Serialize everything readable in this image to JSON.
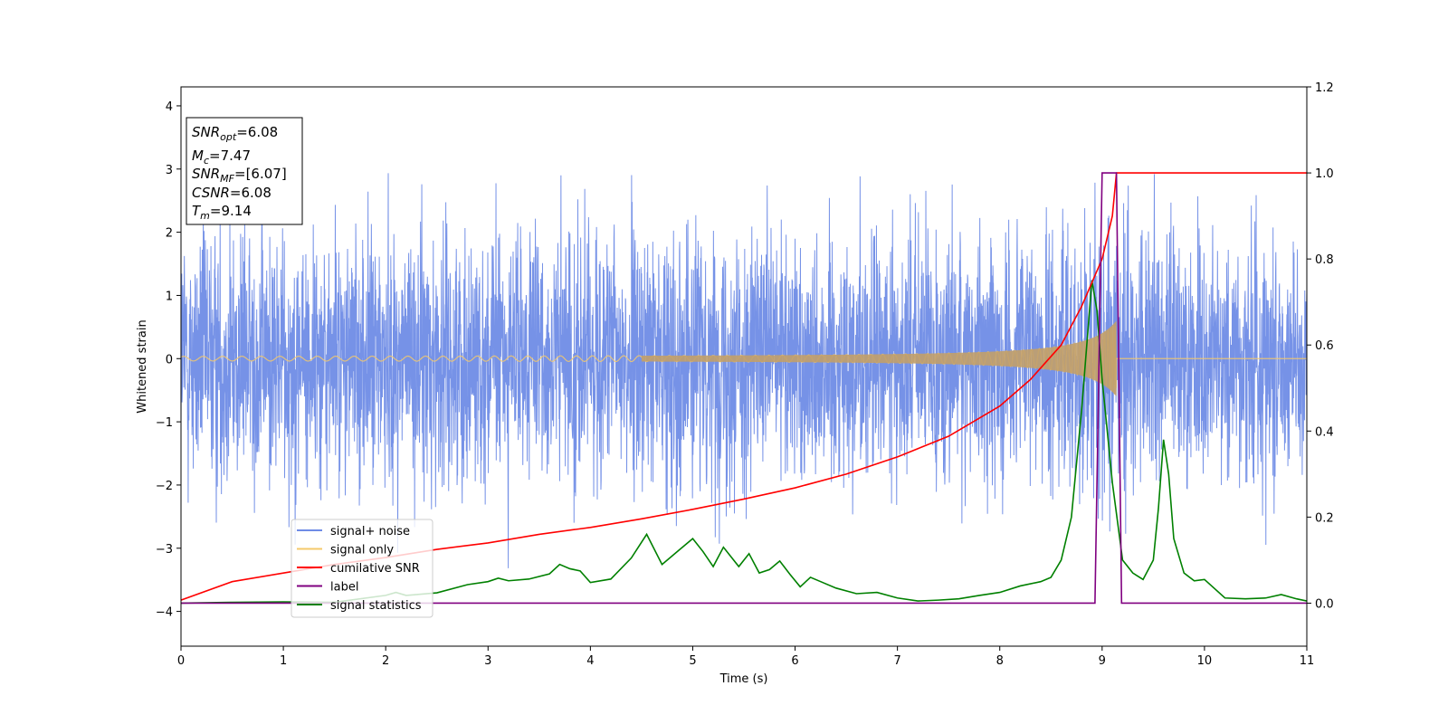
{
  "chart_data": {
    "type": "line",
    "xlabel": "Time (s)",
    "ylabel": "Whitened strain",
    "xlim": [
      0,
      11
    ],
    "ylim_left": [
      -4.55,
      4.3
    ],
    "ylim_right": [
      -0.1,
      1.2
    ],
    "x_ticks": [
      0,
      1,
      2,
      3,
      4,
      5,
      6,
      7,
      8,
      9,
      10,
      11
    ],
    "y_ticks_left": [
      -4,
      -3,
      -2,
      -1,
      0,
      1,
      2,
      3,
      4
    ],
    "y_ticks_right": [
      0.0,
      0.2,
      0.4,
      0.6,
      0.8,
      1.0,
      1.2
    ],
    "x_tick_labels": [
      "0",
      "1",
      "2",
      "3",
      "4",
      "5",
      "6",
      "7",
      "8",
      "9",
      "10",
      "11"
    ],
    "y_tick_labels_left": [
      "−4",
      "−3",
      "−2",
      "−1",
      "0",
      "1",
      "2",
      "3",
      "4"
    ],
    "y_tick_labels_right": [
      "0.0",
      "0.2",
      "0.4",
      "0.6",
      "0.8",
      "1.0",
      "1.2"
    ],
    "legend": {
      "placement": "lower-left",
      "entries": [
        {
          "label": "signal+ noise",
          "color": "#6f8ce6"
        },
        {
          "label": "signal only",
          "color": "#f5c96b"
        },
        {
          "label": "cumilative SNR",
          "color": "#ff0000"
        },
        {
          "label": "label",
          "color": "#800080"
        },
        {
          "label": "signal statistics",
          "color": "#008000"
        }
      ]
    },
    "info_box": {
      "placement": "top-left",
      "lines": [
        {
          "base": "SNR",
          "sub": "opt",
          "rest": "=6.08"
        },
        {
          "base": "M",
          "sub": "c",
          "rest": "=7.47"
        },
        {
          "base": "SNR",
          "sub": "MF",
          "rest": "=[6.07]"
        },
        {
          "base": "CSNR",
          "sub": "",
          "rest": "=6.08"
        },
        {
          "base": "T",
          "sub": "m",
          "rest": "=9.14"
        }
      ]
    },
    "series": [
      {
        "name": "signal+ noise",
        "axis": "left",
        "color": "#6f8ce6",
        "style": "noise band",
        "noise_sigma": 1.0,
        "amplitude_min": -4.15,
        "amplitude_max": 3.9,
        "t_start": 0,
        "t_end": 11
      },
      {
        "name": "signal only",
        "axis": "left",
        "color": "#f5c96b",
        "style": "chirp",
        "t_end": 9.14,
        "amplitude_start": 0.03,
        "amplitude_peak": 0.6
      },
      {
        "name": "cumilative SNR",
        "axis": "right",
        "color": "#ff0000",
        "x": [
          0,
          0.5,
          1,
          1.5,
          2,
          2.5,
          3,
          3.5,
          4,
          4.5,
          5,
          5.5,
          6,
          6.5,
          7,
          7.5,
          8,
          8.3,
          8.6,
          8.8,
          9.0,
          9.1,
          9.14,
          11
        ],
        "y": [
          0.007,
          0.05,
          0.07,
          0.09,
          0.106,
          0.125,
          0.14,
          0.16,
          0.176,
          0.196,
          0.218,
          0.242,
          0.268,
          0.3,
          0.34,
          0.388,
          0.458,
          0.52,
          0.6,
          0.69,
          0.8,
          0.9,
          1.0,
          1.0
        ]
      },
      {
        "name": "label",
        "axis": "right",
        "color": "#800080",
        "x": [
          0,
          8.93,
          9.0,
          9.14,
          9.19,
          11
        ],
        "y": [
          0,
          0,
          1.0,
          1.0,
          0,
          0
        ]
      },
      {
        "name": "signal statistics",
        "axis": "right",
        "color": "#008000",
        "x": [
          0,
          0.5,
          1,
          1.5,
          2,
          2.1,
          2.2,
          2.5,
          2.8,
          3.0,
          3.1,
          3.2,
          3.4,
          3.6,
          3.7,
          3.8,
          3.9,
          4.0,
          4.2,
          4.4,
          4.55,
          4.7,
          4.85,
          5.0,
          5.1,
          5.2,
          5.3,
          5.45,
          5.55,
          5.65,
          5.75,
          5.85,
          5.95,
          6.05,
          6.15,
          6.25,
          6.4,
          6.6,
          6.8,
          7.0,
          7.2,
          7.4,
          7.6,
          7.8,
          8.0,
          8.2,
          8.4,
          8.5,
          8.6,
          8.7,
          8.8,
          8.9,
          8.95,
          9.0,
          9.05,
          9.1,
          9.2,
          9.3,
          9.4,
          9.5,
          9.55,
          9.6,
          9.65,
          9.7,
          9.8,
          9.9,
          10.0,
          10.2,
          10.4,
          10.6,
          10.75,
          10.9,
          11
        ],
        "y": [
          0.0,
          0.002,
          0.003,
          0.002,
          0.018,
          0.025,
          0.018,
          0.024,
          0.043,
          0.05,
          0.058,
          0.052,
          0.056,
          0.068,
          0.09,
          0.08,
          0.075,
          0.048,
          0.056,
          0.105,
          0.16,
          0.09,
          0.12,
          0.15,
          0.12,
          0.085,
          0.13,
          0.085,
          0.115,
          0.07,
          0.078,
          0.098,
          0.067,
          0.038,
          0.06,
          0.05,
          0.035,
          0.022,
          0.025,
          0.012,
          0.005,
          0.007,
          0.01,
          0.018,
          0.025,
          0.04,
          0.05,
          0.06,
          0.1,
          0.2,
          0.45,
          0.75,
          0.68,
          0.52,
          0.4,
          0.28,
          0.1,
          0.07,
          0.055,
          0.1,
          0.22,
          0.38,
          0.3,
          0.15,
          0.07,
          0.052,
          0.055,
          0.012,
          0.01,
          0.012,
          0.02,
          0.01,
          0.005
        ]
      }
    ]
  }
}
